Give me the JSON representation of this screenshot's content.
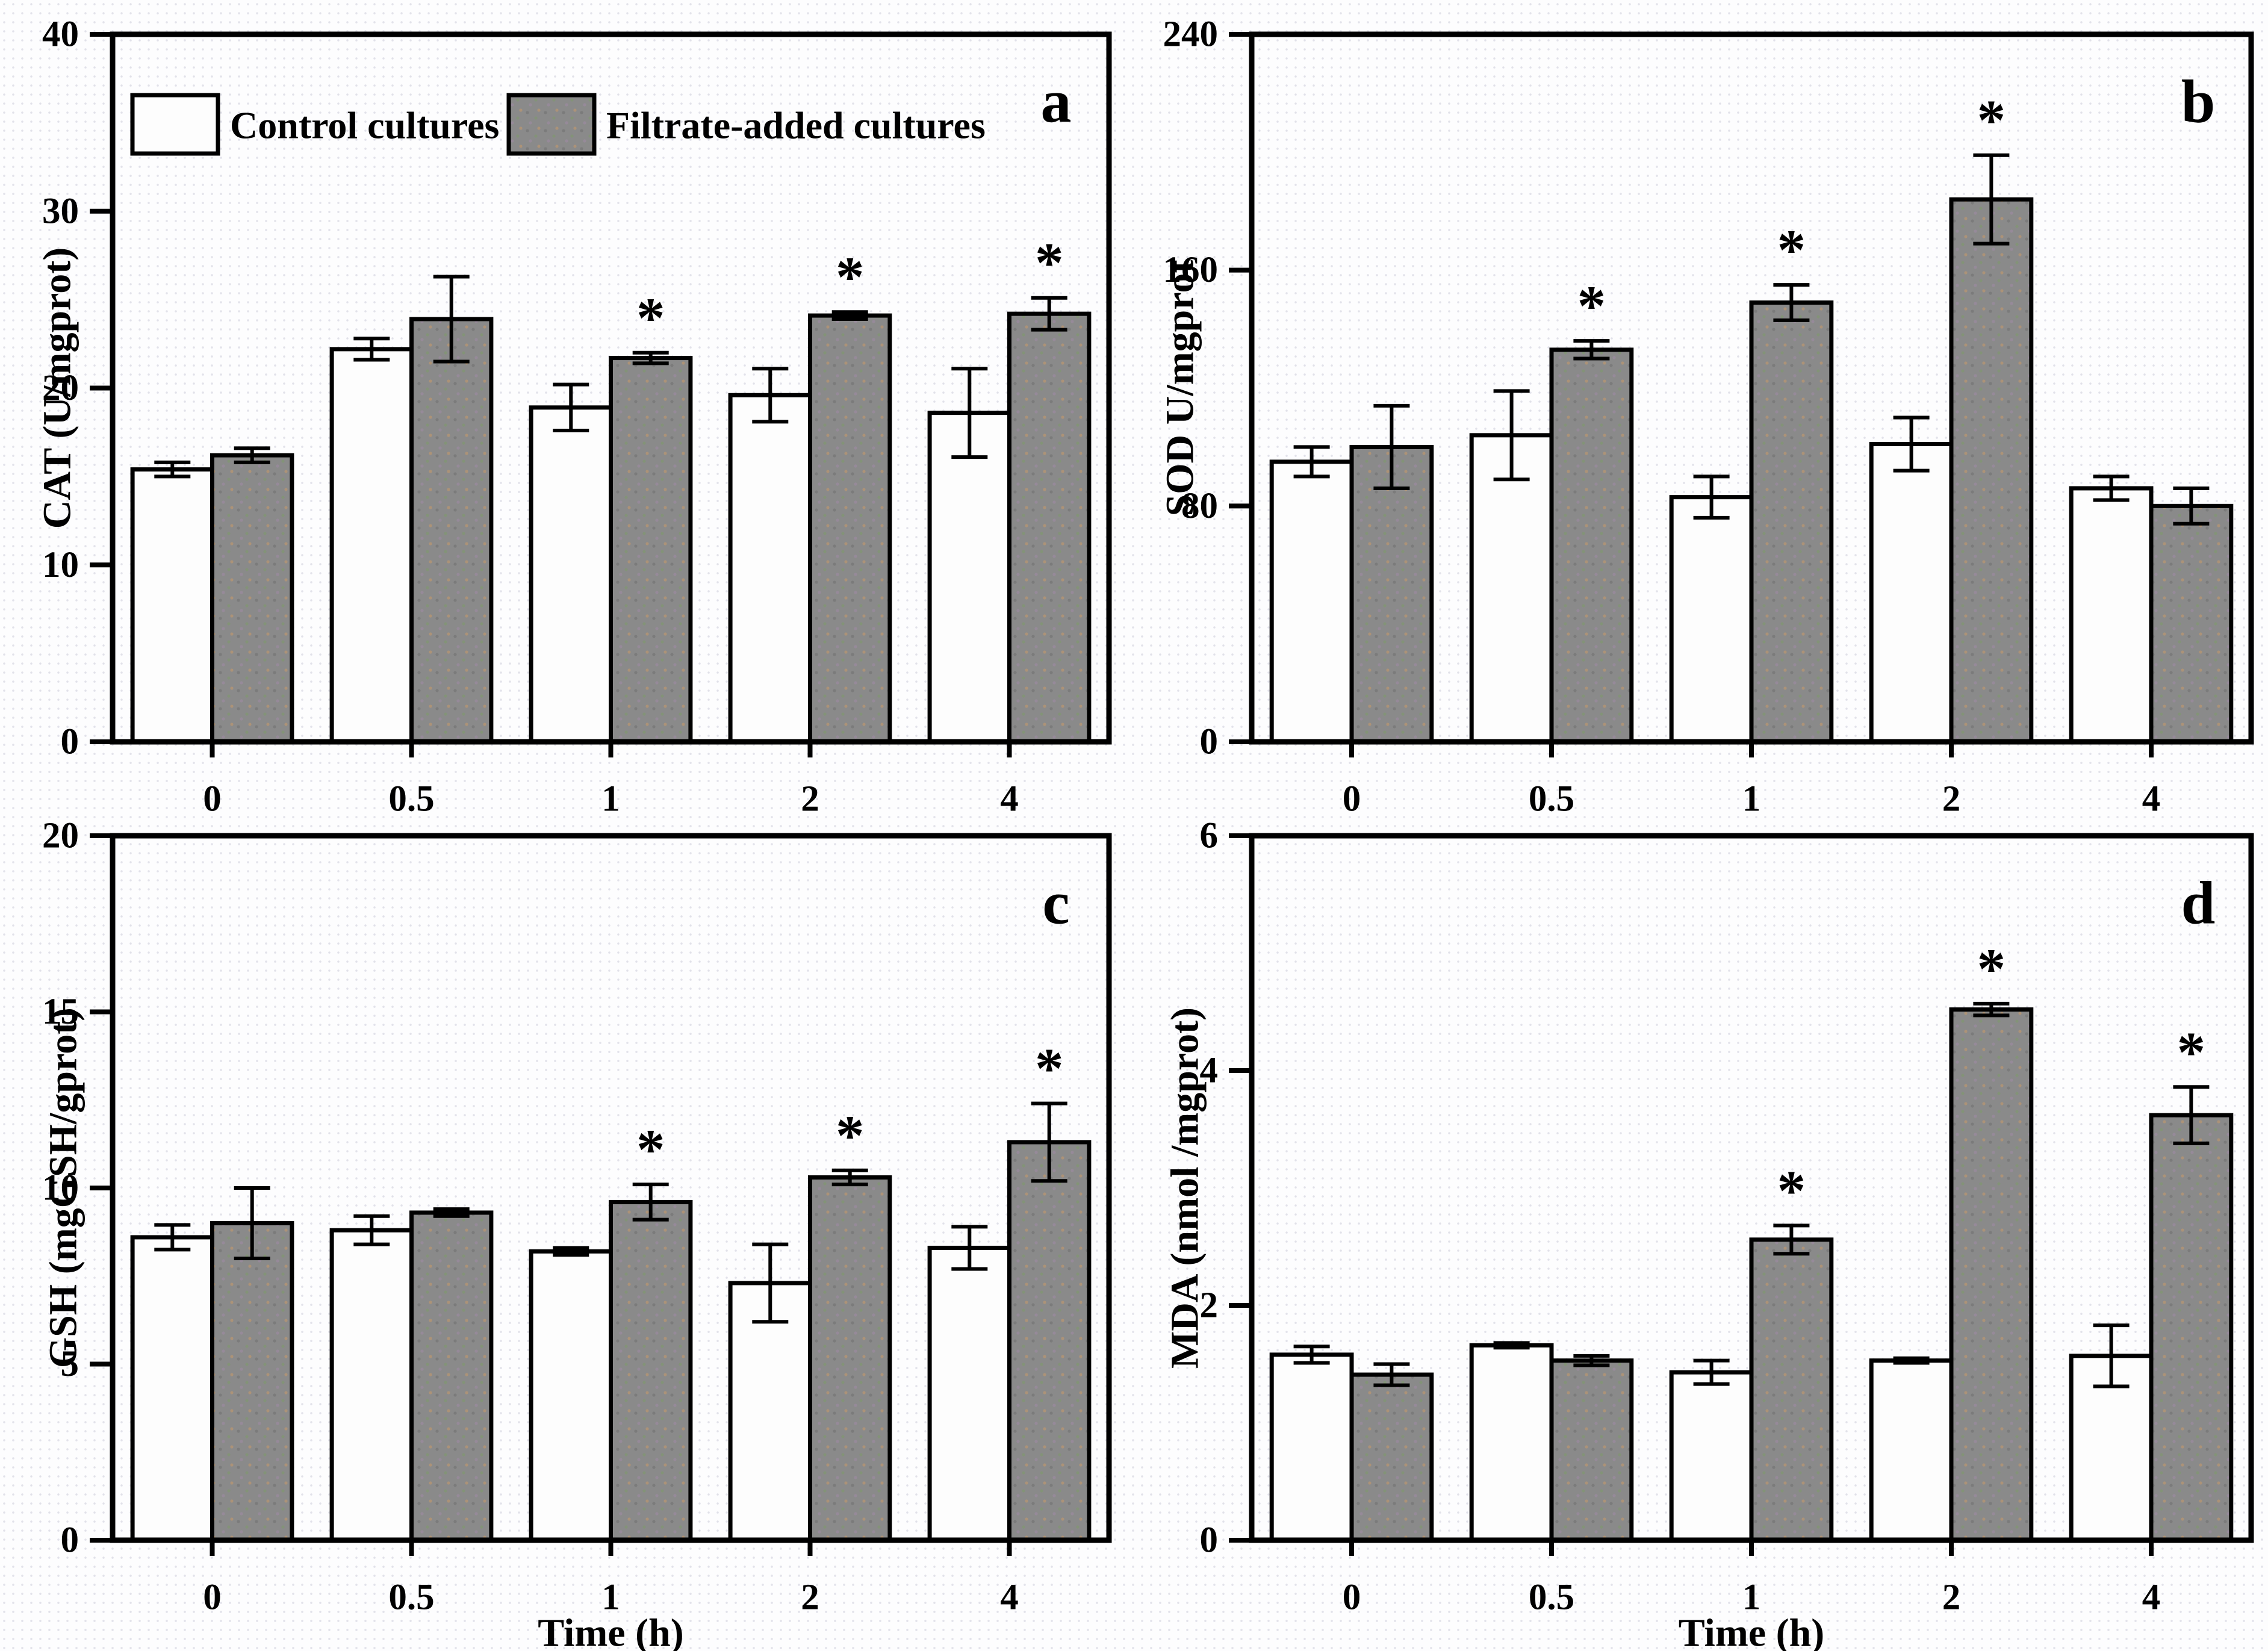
{
  "figure": {
    "background_color": "#fdfdfe",
    "frame_color": "#000000",
    "bar_colors": {
      "control": "#fdfdfd",
      "filtrate": "#8a8a8a"
    },
    "significance_marker": "*",
    "x_axis_title": "Time (h)",
    "categories": [
      "0",
      "0.5",
      "1",
      "2",
      "4"
    ],
    "legend": [
      {
        "key": "control",
        "label": "Control cultures"
      },
      {
        "key": "filtrate",
        "label": "Filtrate-added cultures"
      }
    ]
  },
  "chart_data": [
    {
      "type": "bar",
      "panel_label": "a",
      "title": "",
      "ylabel": "CAT (U/mgprot)",
      "xlabel": "",
      "ylim": [
        0,
        40
      ],
      "yticks": [
        0,
        10,
        20,
        30,
        40
      ],
      "grid": false,
      "legend_position": "inside-top-left",
      "categories": [
        "0",
        "0.5",
        "1",
        "2",
        "4"
      ],
      "series": [
        {
          "key": "control",
          "name": "Control cultures",
          "values": [
            15.4,
            22.2,
            18.9,
            19.6,
            18.6
          ],
          "errors": [
            0.4,
            0.6,
            1.3,
            1.5,
            2.5
          ],
          "significant": [
            false,
            false,
            false,
            false,
            false
          ]
        },
        {
          "key": "filtrate",
          "name": "Filtrate-added cultures",
          "values": [
            16.2,
            23.9,
            21.7,
            24.1,
            24.2
          ],
          "errors": [
            0.4,
            2.4,
            0.3,
            0.2,
            0.9
          ],
          "significant": [
            false,
            false,
            true,
            true,
            true
          ]
        }
      ]
    },
    {
      "type": "bar",
      "panel_label": "b",
      "title": "",
      "ylabel": "SOD U/mgprot",
      "xlabel": "",
      "ylim": [
        0,
        240
      ],
      "yticks": [
        0,
        80,
        160,
        240
      ],
      "grid": false,
      "legend_position": null,
      "categories": [
        "0",
        "0.5",
        "1",
        "2",
        "4"
      ],
      "series": [
        {
          "key": "control",
          "name": "Control cultures",
          "values": [
            95,
            104,
            83,
            101,
            86
          ],
          "errors": [
            5,
            15,
            7,
            9,
            4
          ],
          "significant": [
            false,
            false,
            false,
            false,
            false
          ]
        },
        {
          "key": "filtrate",
          "name": "Filtrate-added cultures",
          "values": [
            100,
            133,
            149,
            184,
            80
          ],
          "errors": [
            14,
            3,
            6,
            15,
            6
          ],
          "significant": [
            false,
            true,
            true,
            true,
            false
          ]
        }
      ]
    },
    {
      "type": "bar",
      "panel_label": "c",
      "title": "",
      "ylabel": "GSH (mgGSH/gprot)",
      "xlabel": "Time (h)",
      "ylim": [
        0,
        20
      ],
      "yticks": [
        0,
        5,
        10,
        15,
        20
      ],
      "grid": false,
      "legend_position": null,
      "categories": [
        "0",
        "0.5",
        "1",
        "2",
        "4"
      ],
      "series": [
        {
          "key": "control",
          "name": "Control cultures",
          "values": [
            8.6,
            8.8,
            8.2,
            7.3,
            8.3
          ],
          "errors": [
            0.35,
            0.4,
            0.1,
            1.1,
            0.6
          ],
          "significant": [
            false,
            false,
            false,
            false,
            false
          ]
        },
        {
          "key": "filtrate",
          "name": "Filtrate-added cultures",
          "values": [
            9.0,
            9.3,
            9.6,
            10.3,
            11.3
          ],
          "errors": [
            1.0,
            0.1,
            0.5,
            0.2,
            1.1
          ],
          "significant": [
            false,
            false,
            true,
            true,
            true
          ]
        }
      ]
    },
    {
      "type": "bar",
      "panel_label": "d",
      "title": "",
      "ylabel": "MDA (nmol /mgprot)",
      "xlabel": "Time (h)",
      "ylim": [
        0,
        6
      ],
      "yticks": [
        0,
        2,
        4,
        6
      ],
      "grid": false,
      "legend_position": null,
      "categories": [
        "0",
        "0.5",
        "1",
        "2",
        "4"
      ],
      "series": [
        {
          "key": "control",
          "name": "Control cultures",
          "values": [
            1.58,
            1.66,
            1.43,
            1.53,
            1.57
          ],
          "errors": [
            0.07,
            0.02,
            0.1,
            0.02,
            0.26
          ],
          "significant": [
            false,
            false,
            false,
            false,
            false
          ]
        },
        {
          "key": "filtrate",
          "name": "Filtrate-added cultures",
          "values": [
            1.41,
            1.53,
            2.56,
            4.52,
            3.62
          ],
          "errors": [
            0.09,
            0.04,
            0.12,
            0.05,
            0.24
          ],
          "significant": [
            false,
            false,
            true,
            true,
            true
          ]
        }
      ]
    }
  ]
}
